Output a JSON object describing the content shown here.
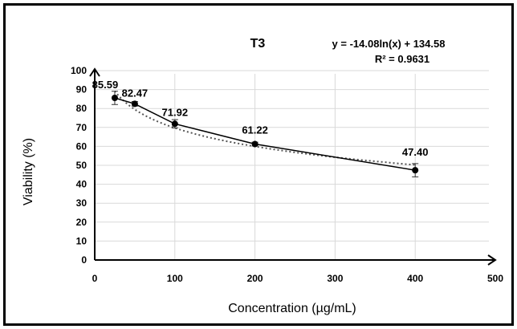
{
  "chart_data": {
    "type": "scatter",
    "title": "T3",
    "xlabel": "Concentration (µg/mL)",
    "ylabel": "Viability (%)",
    "xlim": [
      0,
      500
    ],
    "ylim": [
      0,
      100
    ],
    "x_ticks": [
      "0",
      "100",
      "200",
      "300",
      "400",
      "500"
    ],
    "y_ticks": [
      "0",
      "10",
      "20",
      "30",
      "40",
      "50",
      "60",
      "70",
      "80",
      "90",
      "100"
    ],
    "grid": true,
    "series": [
      {
        "x": [
          25,
          50,
          100,
          200,
          400
        ],
        "y": [
          85.59,
          82.47,
          71.92,
          61.22,
          47.4
        ],
        "labels": [
          "85.59",
          "82.47",
          "71.92",
          "61.22",
          "47.40"
        ],
        "error": [
          3.5,
          1.2,
          2.2,
          1.0,
          3.5
        ],
        "color": "#000000"
      }
    ],
    "trendline": {
      "type": "logarithmic",
      "equation": "y = -14.08ln(x) + 134.58",
      "r_squared": "R² = 0.9631",
      "a": -14.08,
      "b": 134.58,
      "color": "#555555",
      "style": "dotted"
    }
  }
}
